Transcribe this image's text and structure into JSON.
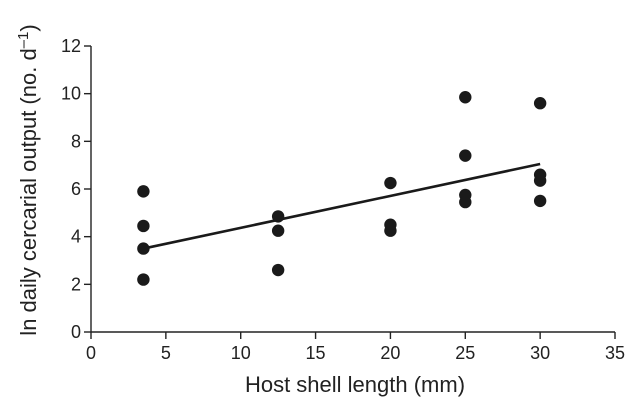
{
  "chart_data": {
    "type": "scatter",
    "title": "",
    "xlabel": "Host shell length (mm)",
    "ylabel_main": "ln daily cercarial output (no. d",
    "ylabel_sup": "–1",
    "ylabel_close": ")",
    "xlim": [
      0,
      35
    ],
    "ylim": [
      0,
      12
    ],
    "xticks": [
      0,
      5,
      10,
      15,
      20,
      25,
      30,
      35
    ],
    "yticks": [
      0,
      2,
      4,
      6,
      8,
      10,
      12
    ],
    "grid": false,
    "legend": "none",
    "points": [
      {
        "x": 3.5,
        "y": 5.9
      },
      {
        "x": 3.5,
        "y": 4.45
      },
      {
        "x": 3.5,
        "y": 3.5
      },
      {
        "x": 3.5,
        "y": 2.2
      },
      {
        "x": 12.5,
        "y": 4.85
      },
      {
        "x": 12.5,
        "y": 4.25
      },
      {
        "x": 12.5,
        "y": 2.6
      },
      {
        "x": 20,
        "y": 6.25
      },
      {
        "x": 20,
        "y": 4.5
      },
      {
        "x": 20,
        "y": 4.25
      },
      {
        "x": 25,
        "y": 9.85
      },
      {
        "x": 25,
        "y": 7.4
      },
      {
        "x": 25,
        "y": 5.75
      },
      {
        "x": 25,
        "y": 5.45
      },
      {
        "x": 30,
        "y": 9.6
      },
      {
        "x": 30,
        "y": 6.6
      },
      {
        "x": 30,
        "y": 6.35
      },
      {
        "x": 30,
        "y": 5.5
      }
    ],
    "fit_line": {
      "x": [
        3.5,
        30
      ],
      "y": [
        3.5,
        7.05
      ]
    },
    "colors": {
      "points": "#1a1a1a",
      "line": "#1a1a1a",
      "axes": "#222222"
    }
  }
}
